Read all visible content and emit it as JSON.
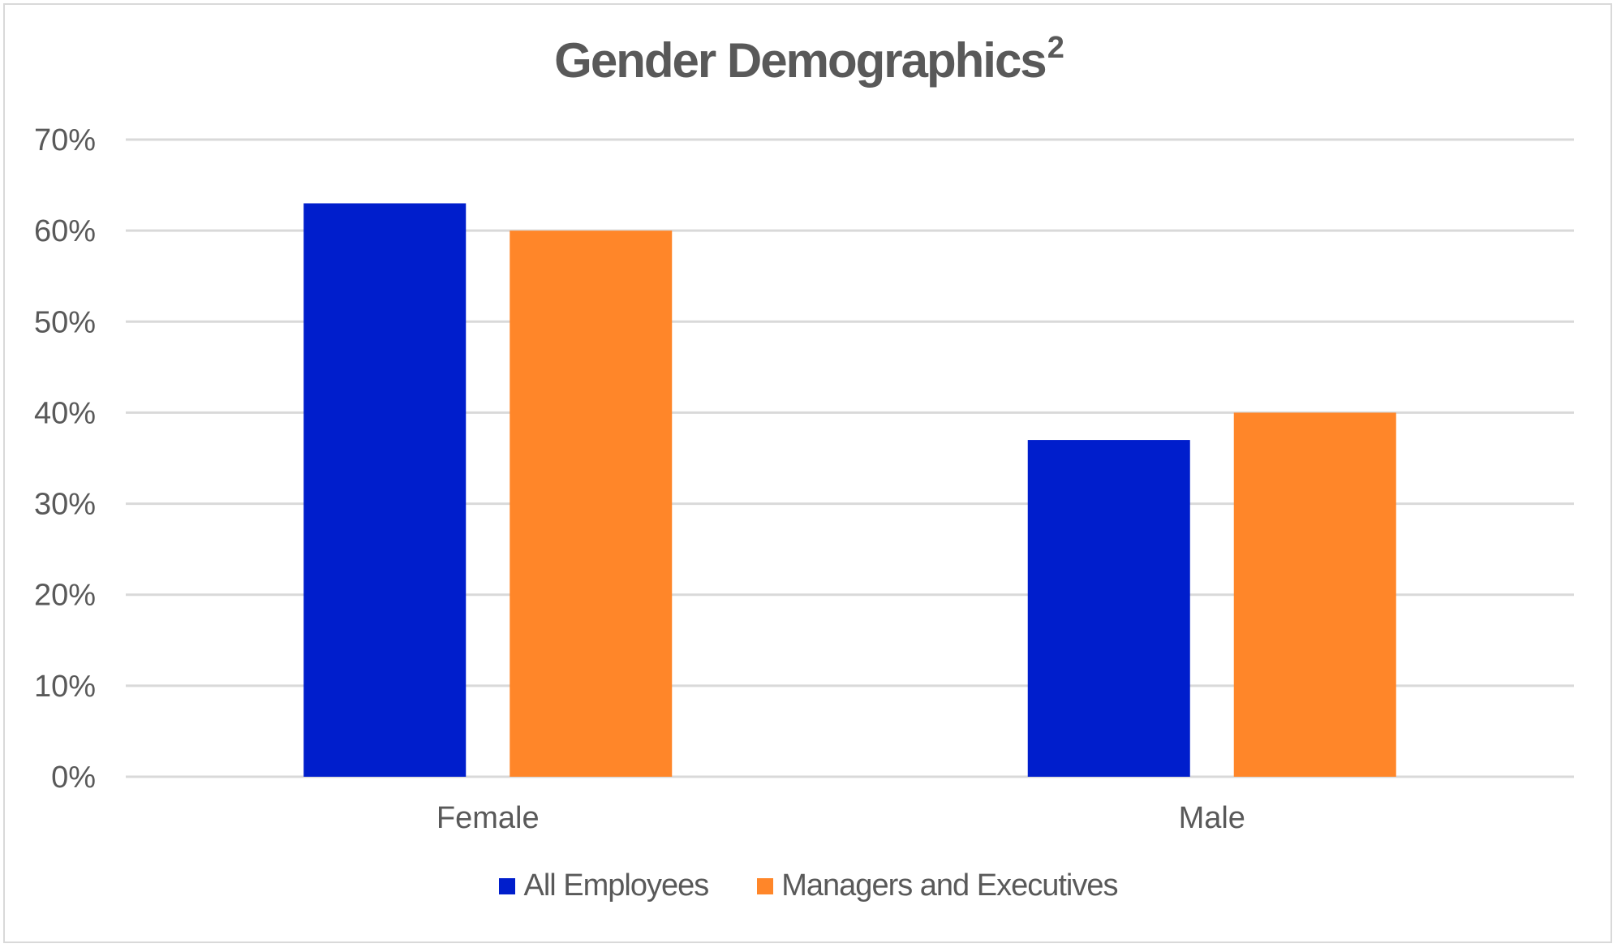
{
  "chart_data": {
    "type": "bar",
    "title": "Gender Demographics",
    "title_superscript": "2",
    "categories": [
      "Female",
      "Male"
    ],
    "series": [
      {
        "name": "All Employees",
        "values": [
          63,
          37
        ],
        "color": "#001ecc"
      },
      {
        "name": "Managers and Executives",
        "values": [
          60,
          40
        ],
        "color": "#ff8629"
      }
    ],
    "y_ticks": [
      "0%",
      "10%",
      "20%",
      "30%",
      "40%",
      "50%",
      "60%",
      "70%"
    ],
    "ylim": [
      0,
      70
    ],
    "y_unit": "%",
    "grid": true,
    "legend_position": "bottom",
    "gridline_color": "#d9d9d9"
  }
}
